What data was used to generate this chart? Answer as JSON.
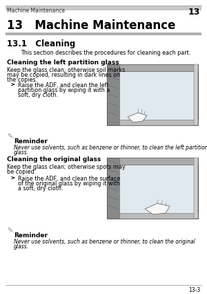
{
  "bg_color": "#ffffff",
  "header_text": "Machine Maintenance",
  "header_num": "13",
  "chapter_title": "13   Machine Maintenance",
  "section_title": "13.1   Cleaning",
  "section_intro": "This section describes the procedures for cleaning each part.",
  "subsection1_title": "Cleaning the left partition glass",
  "subsection1_body1": "Keep the glass clean; otherwise soil marks",
  "subsection1_body2": "may be copied, resulting in dark lines on",
  "subsection1_body3": "the copies.",
  "subsection1_bullet": "Raise the ADF, and clean the left",
  "subsection1_bullet2": "partition glass by wiping it with a",
  "subsection1_bullet3": "soft, dry cloth.",
  "reminder1_title": "Reminder",
  "reminder1_text1": "Never use solvents, such as benzene or thinner, to clean the left partition",
  "reminder1_text2": "glass.",
  "subsection2_title": "Cleaning the original glass",
  "subsection2_body1": "Keep the glass clean; otherwise spots may",
  "subsection2_body2": "be copied.",
  "subsection2_bullet": "Raise the ADF, and clean the surface",
  "subsection2_bullet2": "of the original glass by wiping it with",
  "subsection2_bullet3": "a soft, dry cloth.",
  "reminder2_title": "Reminder",
  "reminder2_text1": "Never use solvents, such as benzene or thinner, to clean the original",
  "reminder2_text2": "glass.",
  "footer_text": "13-3",
  "gray_bar_color": "#b0b0b0",
  "header_bar_color": "#c8c8c8",
  "text_color": "#000000",
  "small_text_size": 5.5,
  "body_text_size": 5.8,
  "subsec_title_size": 6.5,
  "section_title_size": 8.5,
  "chapter_title_size": 12
}
